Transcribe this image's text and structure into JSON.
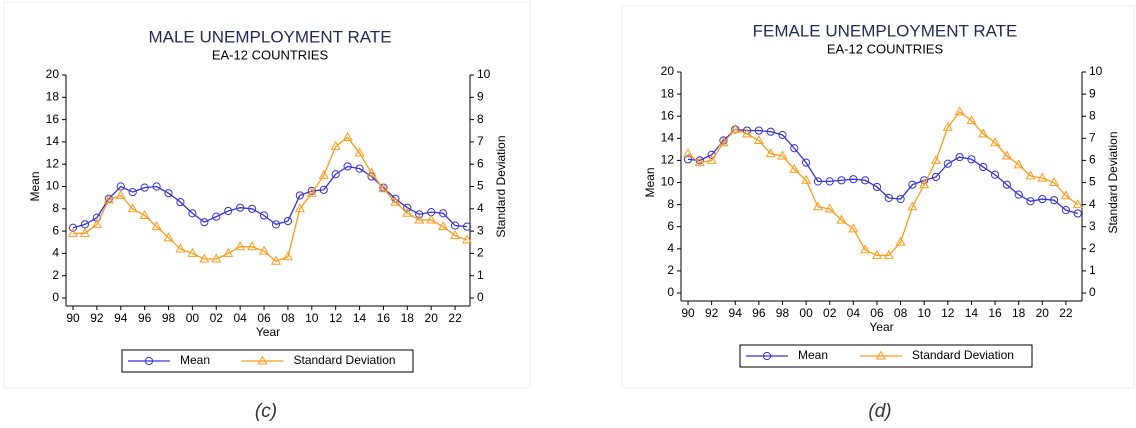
{
  "chart_data": [
    {
      "type": "line",
      "title": "MALE UNEMPLOYMENT RATE",
      "subtitle": "EA-12 COUNTRIES",
      "caption": "(c)",
      "x_label": "Year",
      "y_label": "Mean",
      "y2_label": "Standard Deviation",
      "categories": [
        "90",
        null,
        "92",
        null,
        "94",
        null,
        "96",
        null,
        "98",
        null,
        "00",
        null,
        "02",
        null,
        "04",
        null,
        "06",
        null,
        "08",
        null,
        "10",
        null,
        "12",
        null,
        "14",
        null,
        "16",
        null,
        "18",
        null,
        "20",
        null,
        "22",
        null
      ],
      "ylim": [
        0,
        20
      ],
      "yticks": [
        0,
        2,
        4,
        6,
        8,
        10,
        12,
        14,
        16,
        18,
        20
      ],
      "y2lim": [
        0,
        10
      ],
      "y2ticks": [
        0,
        1,
        2,
        3,
        4,
        5,
        6,
        7,
        8,
        9,
        10
      ],
      "legend": "bottom",
      "series": [
        {
          "name": "Mean",
          "color": "#3434d8",
          "marker": "circle",
          "values": [
            6.3,
            6.6,
            7.2,
            8.9,
            10.0,
            9.5,
            9.9,
            10.0,
            9.4,
            8.6,
            7.6,
            6.8,
            7.3,
            7.8,
            8.1,
            8.0,
            7.4,
            6.6,
            6.9,
            9.2,
            9.6,
            9.7,
            11.1,
            11.8,
            11.6,
            10.9,
            9.9,
            8.9,
            8.1,
            7.5,
            7.7,
            7.6,
            6.5,
            6.4
          ]
        },
        {
          "name": "Standard Deviation",
          "color": "#ff9a1a",
          "marker": "triangle",
          "axis": "y2",
          "values": [
            2.9,
            2.9,
            3.3,
            4.4,
            4.6,
            4.0,
            3.7,
            3.2,
            2.7,
            2.2,
            2.0,
            1.75,
            1.75,
            2.0,
            2.3,
            2.3,
            2.1,
            1.65,
            1.85,
            4.0,
            4.7,
            5.5,
            6.8,
            7.2,
            6.5,
            5.6,
            4.9,
            4.3,
            3.8,
            3.5,
            3.5,
            3.2,
            2.8,
            2.6
          ]
        }
      ]
    },
    {
      "type": "line",
      "title": "FEMALE UNEMPLOYMENT RATE",
      "subtitle": "EA-12 COUNTRIES",
      "caption": "(d)",
      "x_label": "Year",
      "y_label": "Mean",
      "y2_label": "Standard Deviation",
      "categories": [
        "90",
        null,
        "92",
        null,
        "94",
        null,
        "96",
        null,
        "98",
        null,
        "00",
        null,
        "02",
        null,
        "04",
        null,
        "06",
        null,
        "08",
        null,
        "10",
        null,
        "12",
        null,
        "14",
        null,
        "16",
        null,
        "18",
        null,
        "20",
        null,
        "22",
        null
      ],
      "ylim": [
        0,
        20
      ],
      "yticks": [
        0,
        2,
        4,
        6,
        8,
        10,
        12,
        14,
        16,
        18,
        20
      ],
      "y2lim": [
        0,
        10
      ],
      "y2ticks": [
        0,
        1,
        2,
        3,
        4,
        5,
        6,
        7,
        8,
        9,
        10
      ],
      "legend": "bottom",
      "series": [
        {
          "name": "Mean",
          "color": "#3434d8",
          "marker": "circle",
          "values": [
            12.1,
            12.0,
            12.5,
            13.8,
            14.8,
            14.7,
            14.7,
            14.6,
            14.3,
            13.1,
            11.8,
            10.1,
            10.1,
            10.2,
            10.3,
            10.2,
            9.6,
            8.6,
            8.5,
            9.8,
            10.2,
            10.5,
            11.7,
            12.3,
            12.1,
            11.4,
            10.7,
            9.8,
            8.9,
            8.3,
            8.5,
            8.4,
            7.5,
            7.2
          ]
        },
        {
          "name": "Standard Deviation",
          "color": "#ff9a1a",
          "marker": "triangle",
          "axis": "y2",
          "values": [
            6.3,
            5.9,
            6.0,
            6.8,
            7.4,
            7.2,
            6.9,
            6.3,
            6.2,
            5.6,
            5.1,
            3.9,
            3.8,
            3.3,
            2.9,
            1.95,
            1.7,
            1.7,
            2.3,
            3.9,
            4.9,
            6.0,
            7.5,
            8.2,
            7.8,
            7.2,
            6.8,
            6.2,
            5.8,
            5.3,
            5.2,
            5.0,
            4.4,
            4.0
          ]
        }
      ]
    }
  ]
}
